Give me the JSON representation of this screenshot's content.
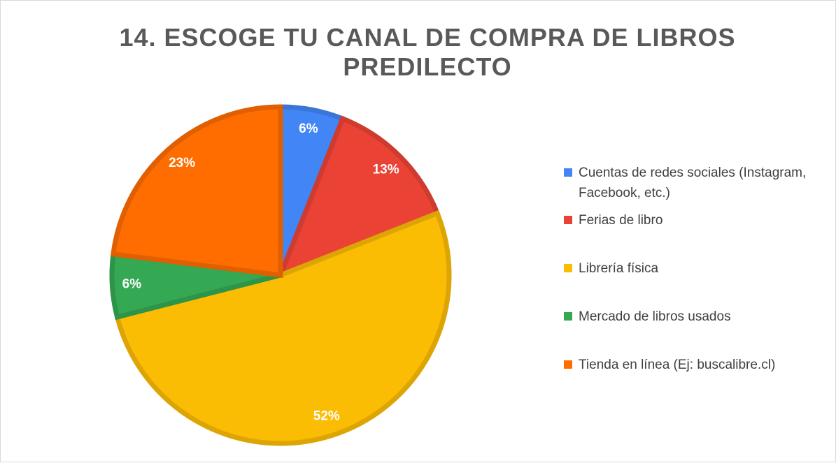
{
  "chart_data": {
    "type": "pie",
    "title": "14. ESCOGE TU CANAL DE COMPRA DE LIBROS PREDILECTO",
    "categories": [
      "Cuentas de redes sociales (Instagram, Facebook, etc.)",
      "Ferias de libro",
      "Librería física",
      "Mercado de libros usados",
      "Tienda en línea (Ej: buscalibre.cl)"
    ],
    "values": [
      6,
      13,
      52,
      6,
      23
    ],
    "value_labels": [
      "6%",
      "13%",
      "52%",
      "6%",
      "23%"
    ],
    "colors": [
      "#4285f4",
      "#ea4335",
      "#fbbc04",
      "#34a853",
      "#ff6d01"
    ],
    "legend": "right"
  }
}
